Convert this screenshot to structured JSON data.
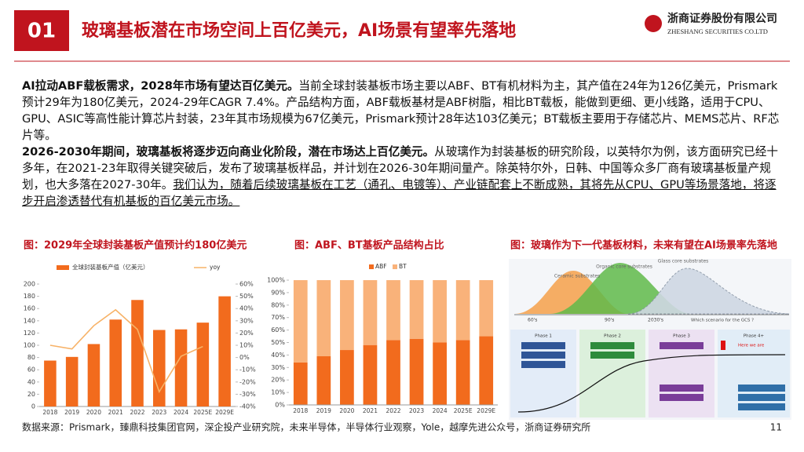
{
  "header": {
    "number": "01",
    "title": "玻璃基板潜在市场空间上百亿美元，AI场景有望率先落地"
  },
  "logo": {
    "name": "浙商证券股份有限公司",
    "english": "ZHESHANG SECURITIES CO.LTD"
  },
  "paragraphs": [
    [
      {
        "text": "AI拉动ABF载板需求，2028年市场有望达百亿美元。",
        "style": "bold"
      },
      {
        "text": "当前全球封装基板市场主要以ABF、BT有机材料为主，其产值在24年为126亿美元，Prismark预计29年为180亿美元，2024-29年CAGR 7.4%。产品结构方面，ABF载板基材是ABF树脂，相比BT载板，能做到更细、更小线路，适用于CPU、GPU、ASIC等高性能计算芯片封装，23年其市场规模为67亿美元，Prismark预计28年达103亿美元；BT载板主要用于存储芯片、MEMS芯片、RF芯片等。",
        "style": "normal"
      }
    ],
    [
      {
        "text": "2026-2030年期间，玻璃基板将逐步迈向商业化阶段，潜在市场达上百亿美元。",
        "style": "bold"
      },
      {
        "text": "从玻璃作为封装基板的研究阶段，以英特尔为例，该方面研究已经十多年，在2021-23年取得关键突破后，发布了玻璃基板样品，并计划在2026-30年期间量产。除英特尔外，日韩、中国等众多厂商有玻璃基板量产规划，也大多落在2027-30年。",
        "style": "normal"
      },
      {
        "text": "我们认为，随着后续玻璃基板在工艺（通孔、电镀等）、产业链配套上不断成熟，其将先从CPU、GPU等场景落地，将逐步开启渗透替代有机基板的百亿美元市场。",
        "style": "underline"
      }
    ]
  ],
  "chart_data": [
    {
      "type": "bar_line",
      "title": "图：2029年全球封装基板产值预计约180亿美元",
      "categories": [
        "2018",
        "2019",
        "2020",
        "2021",
        "2022",
        "2023",
        "2024",
        "2025E",
        "2029E"
      ],
      "series": [
        {
          "name": "全球封装基板产值（亿美元）",
          "color": "#f26b1d",
          "kind": "bar",
          "values": [
            75,
            81,
            102,
            142,
            174,
            125,
            126,
            137,
            180
          ]
        },
        {
          "name": "yoy",
          "color": "#f7b267",
          "kind": "line",
          "axis": "y2",
          "values": [
            10,
            7,
            26,
            39,
            23,
            -28,
            1,
            9,
            null
          ]
        }
      ],
      "ylim": [
        0,
        200
      ],
      "yticks": [
        0,
        20,
        40,
        60,
        80,
        100,
        120,
        140,
        160,
        180,
        200
      ],
      "y2lim": [
        -40,
        60
      ],
      "y2ticks": [
        {
          "value": -40,
          "label": "-40%"
        },
        {
          "value": -30,
          "label": "-30%"
        },
        {
          "value": -20,
          "label": "-20%"
        },
        {
          "value": -10,
          "label": "-10%"
        },
        {
          "value": 0,
          "label": "0%"
        },
        {
          "value": 10,
          "label": "10%"
        },
        {
          "value": 20,
          "label": "20%"
        },
        {
          "value": 30,
          "label": "30%"
        },
        {
          "value": 40,
          "label": "40%"
        },
        {
          "value": 50,
          "label": "50%"
        },
        {
          "value": 60,
          "label": "60%"
        }
      ],
      "grid": false
    },
    {
      "type": "stacked_bar",
      "title": "图：ABF、BT基板产品结构占比",
      "categories": [
        "2018",
        "2019",
        "2020",
        "2021",
        "2022",
        "2023",
        "2024",
        "2025E",
        "2029E"
      ],
      "series": [
        {
          "name": "ABF",
          "color": "#f26b1d",
          "values": [
            34,
            39,
            44,
            48,
            52,
            53,
            50,
            52,
            55
          ]
        },
        {
          "name": "BT",
          "color": "#f9b27a",
          "values": [
            66,
            61,
            56,
            52,
            48,
            47,
            50,
            48,
            45
          ]
        }
      ],
      "ylim": [
        0,
        100
      ],
      "yticks": [
        {
          "value": 0,
          "label": "0%"
        },
        {
          "value": 10,
          "label": "10%"
        },
        {
          "value": 20,
          "label": "20%"
        },
        {
          "value": 30,
          "label": "30%"
        },
        {
          "value": 40,
          "label": "40%"
        },
        {
          "value": 50,
          "label": "50%"
        },
        {
          "value": 60,
          "label": "60%"
        },
        {
          "value": 70,
          "label": "70%"
        },
        {
          "value": 80,
          "label": "80%"
        },
        {
          "value": 90,
          "label": "90%"
        },
        {
          "value": 100,
          "label": "100%"
        }
      ],
      "grid": false
    }
  ],
  "figure3": {
    "title": "图：玻璃作为下一代基板材料，未来有望在AI场景率先落地",
    "curves": [
      "Ceramic substrates",
      "Organic core substrates",
      "Glass core substrates"
    ],
    "eras": [
      "60's",
      "90's",
      "2030's"
    ],
    "question": "Which scenario for the GCS ?",
    "phases": [
      "Phase 1",
      "Phase 2",
      "Phase 3",
      "Phase 4+"
    ],
    "marker": "Here we are"
  },
  "source": "数据来源：Prismark，臻鼎科技集团官网，深企投产业研究院，未来半导体，半导体行业观察，Yole，越摩先进公众号，浙商证券研究所",
  "page": "11"
}
